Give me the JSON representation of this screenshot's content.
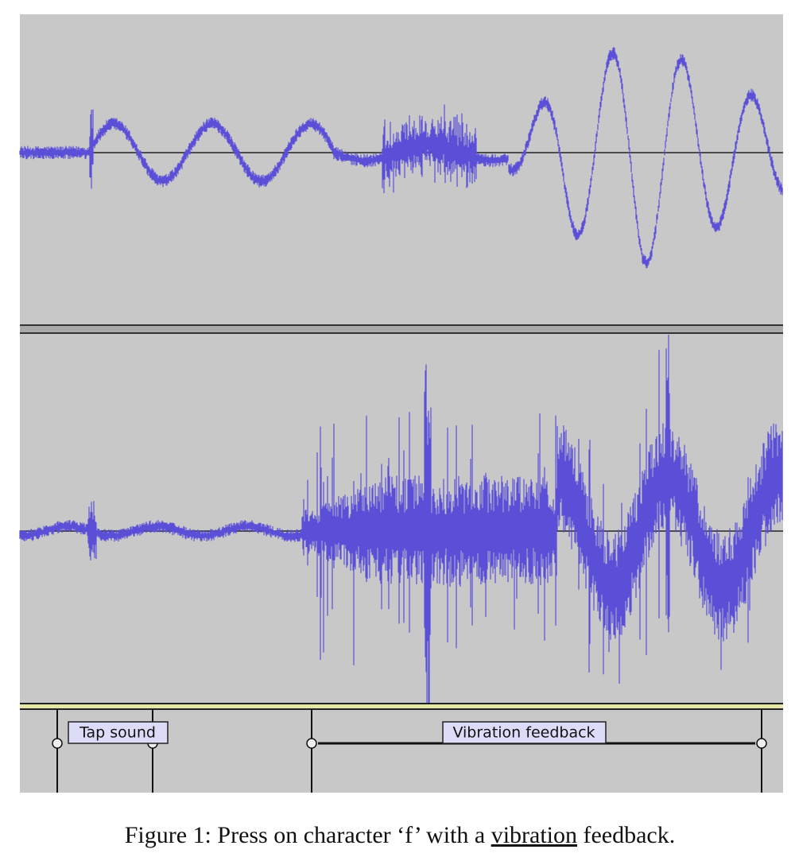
{
  "labels": {
    "tap_sound": "Tap sound",
    "vibration_feedback": "Vibration feedback"
  },
  "caption": {
    "prefix": "Figure 1: Press on character ‘f’ with a ",
    "underlined": "vibration",
    "suffix": " feedback."
  }
}
